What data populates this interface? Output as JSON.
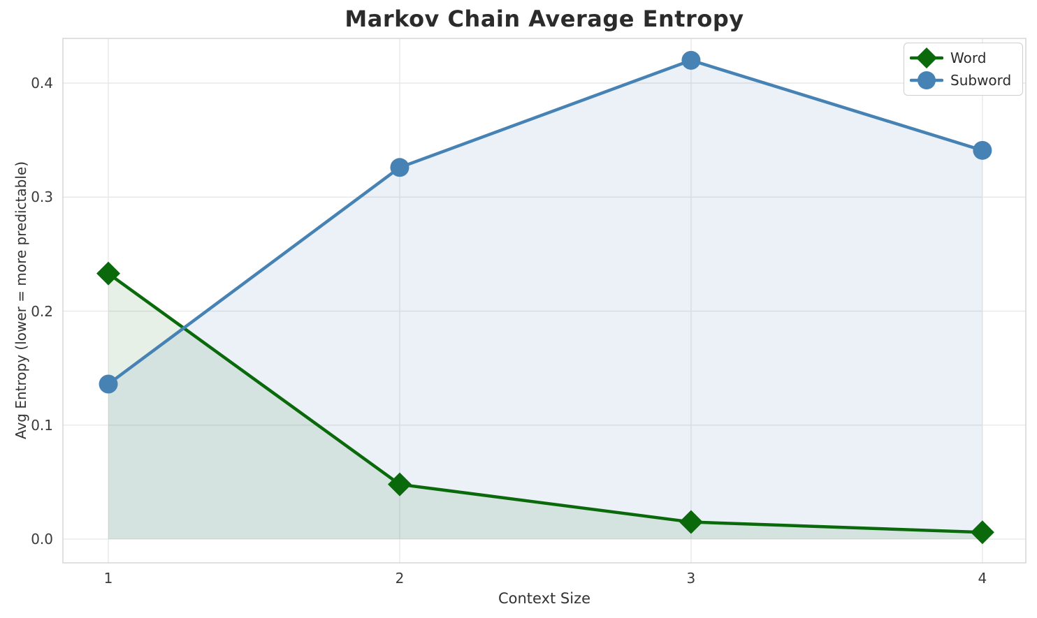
{
  "chart_data": {
    "type": "line",
    "title": "Markov Chain Average Entropy",
    "xlabel": "Context Size",
    "ylabel": "Avg Entropy (lower = more predictable)",
    "x": [
      1,
      2,
      3,
      4
    ],
    "series": [
      {
        "name": "Word",
        "values": [
          0.233,
          0.048,
          0.015,
          0.006
        ],
        "color": "#0a690a",
        "fill": "rgba(10,105,10,0.10)",
        "marker": "diamond"
      },
      {
        "name": "Subword",
        "values": [
          0.136,
          0.326,
          0.42,
          0.341
        ],
        "color": "#4682b4",
        "fill": "rgba(70,130,180,0.11)",
        "marker": "circle"
      }
    ],
    "xlim": [
      0.844,
      4.149
    ],
    "ylim": [
      -0.0208,
      0.4392
    ],
    "xticks": [
      "1",
      "2",
      "3",
      "4"
    ],
    "xtick_values": [
      1,
      2,
      3,
      4
    ],
    "yticks": [
      "0.0",
      "0.1",
      "0.2",
      "0.3",
      "0.4"
    ],
    "ytick_values": [
      0.0,
      0.1,
      0.2,
      0.3,
      0.4
    ],
    "grid": true,
    "area_fill_baseline": 0,
    "legend_position": "upper right"
  },
  "colors": {
    "grid": "#e8e8e8",
    "spine": "#d8d8d8",
    "title_text": "#2b2b2b",
    "tick_text": "#3a3a3a"
  }
}
